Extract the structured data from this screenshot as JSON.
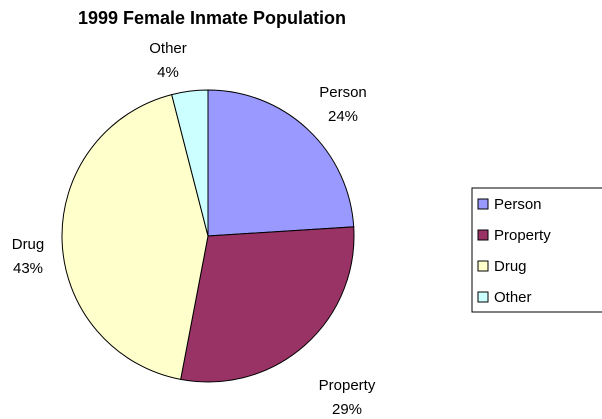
{
  "chart_data": {
    "type": "pie",
    "title": "1999 Female Inmate Population",
    "categories": [
      "Person",
      "Property",
      "Drug",
      "Other"
    ],
    "values": [
      24,
      29,
      43,
      4
    ],
    "value_labels": [
      "24%",
      "29%",
      "43%",
      "4%"
    ],
    "colors": [
      "#9999ff",
      "#993366",
      "#ffffcc",
      "#ccffff"
    ],
    "legend": "right"
  }
}
